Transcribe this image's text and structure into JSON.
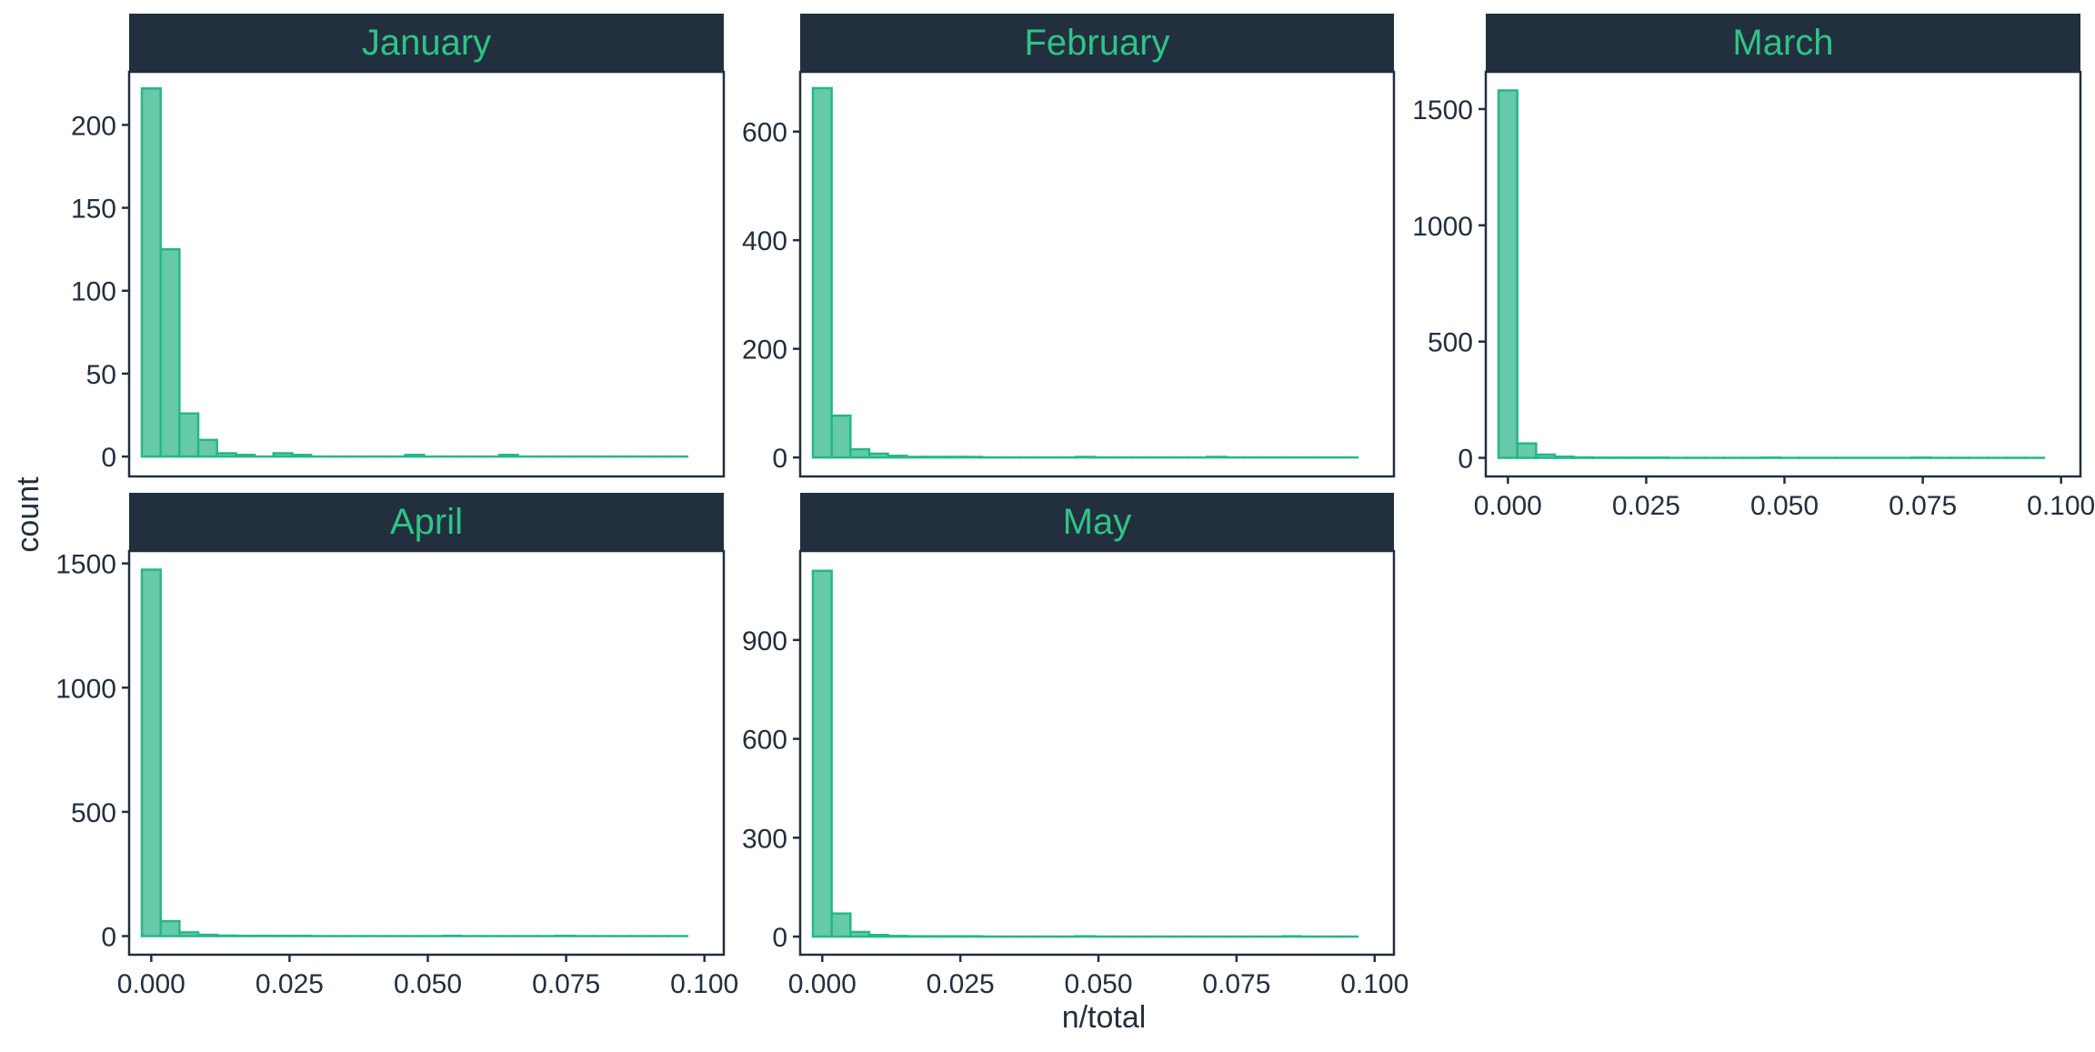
{
  "chart_data": {
    "type": "bar",
    "kind": "faceted-histogram",
    "xlabel": "n/total",
    "ylabel": "count",
    "colors": {
      "bar_fill": "#66c9a9",
      "bar_stroke": "#25b886",
      "strip_bg": "#222f3e",
      "strip_text": "#2ec486",
      "axis": "#222f3e",
      "text": "#222f3e"
    },
    "x_ticks": [
      "0.000",
      "0.025",
      "0.050",
      "0.075",
      "0.100"
    ],
    "xlim": [
      -0.004,
      0.1035
    ],
    "bin_width": 0.0034,
    "bin_start": -0.0017,
    "facets": [
      {
        "title": "January",
        "ylim": [
          -12,
          232
        ],
        "y_ticks": [
          0,
          50,
          100,
          150,
          200
        ],
        "counts": [
          222,
          125,
          26,
          10,
          2,
          1,
          0,
          2,
          1,
          0,
          0,
          0,
          0,
          0,
          1,
          0,
          0,
          0,
          0,
          1,
          0,
          0,
          0,
          0,
          0,
          0,
          0,
          0,
          0
        ]
      },
      {
        "title": "February",
        "ylim": [
          -35,
          710
        ],
        "y_ticks": [
          0,
          200,
          400,
          600
        ],
        "counts": [
          680,
          77,
          15,
          7,
          3,
          1,
          1,
          1,
          1,
          0,
          0,
          0,
          0,
          0,
          1,
          0,
          0,
          0,
          0,
          0,
          0,
          1,
          0,
          0,
          0,
          0,
          0,
          0,
          0
        ]
      },
      {
        "title": "March",
        "ylim": [
          -80,
          1660
        ],
        "y_ticks": [
          0,
          500,
          1000,
          1500
        ],
        "counts": [
          1580,
          62,
          14,
          5,
          2,
          1,
          1,
          1,
          1,
          0,
          0,
          0,
          0,
          0,
          1,
          0,
          0,
          0,
          0,
          0,
          0,
          0,
          1,
          0,
          0,
          0,
          0,
          0,
          0
        ]
      },
      {
        "title": "April",
        "ylim": [
          -75,
          1550
        ],
        "y_ticks": [
          0,
          500,
          1000,
          1500
        ],
        "counts": [
          1475,
          60,
          15,
          5,
          2,
          1,
          1,
          1,
          1,
          0,
          0,
          0,
          0,
          0,
          0,
          0,
          1,
          0,
          0,
          0,
          0,
          0,
          1,
          0,
          0,
          0,
          0,
          0,
          0
        ]
      },
      {
        "title": "May",
        "ylim": [
          -55,
          1170
        ],
        "y_ticks": [
          0,
          300,
          600,
          900
        ],
        "counts": [
          1110,
          70,
          14,
          5,
          2,
          1,
          1,
          1,
          1,
          0,
          0,
          0,
          0,
          0,
          1,
          0,
          0,
          0,
          0,
          0,
          0,
          0,
          0,
          0,
          0,
          1,
          0,
          0,
          0
        ]
      }
    ]
  }
}
